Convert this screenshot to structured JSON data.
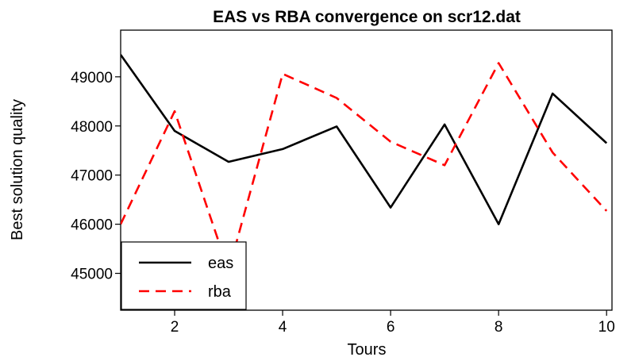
{
  "chart_data": {
    "type": "line",
    "title": "EAS vs RBA convergence on scr12.dat",
    "xlabel": "Tours",
    "ylabel": "Best solution quality",
    "x": [
      1,
      2,
      3,
      4,
      5,
      6,
      7,
      8,
      9,
      10
    ],
    "xlim": [
      1,
      10.1
    ],
    "ylim": [
      44250,
      49950
    ],
    "x_ticks": [
      2,
      4,
      6,
      8,
      10
    ],
    "y_ticks": [
      45000,
      46000,
      47000,
      48000,
      49000
    ],
    "grid": false,
    "legend_position": "bottom-left",
    "series": [
      {
        "name": "eas",
        "color": "#000000",
        "dash": "solid",
        "values": [
          49450,
          47900,
          47270,
          47530,
          47990,
          46340,
          48030,
          46000,
          48660,
          47650
        ]
      },
      {
        "name": "rba",
        "color": "#ff0000",
        "dash": "dashed",
        "values": [
          46000,
          48300,
          45050,
          49060,
          48570,
          47680,
          47200,
          49280,
          47460,
          46270
        ]
      }
    ]
  }
}
